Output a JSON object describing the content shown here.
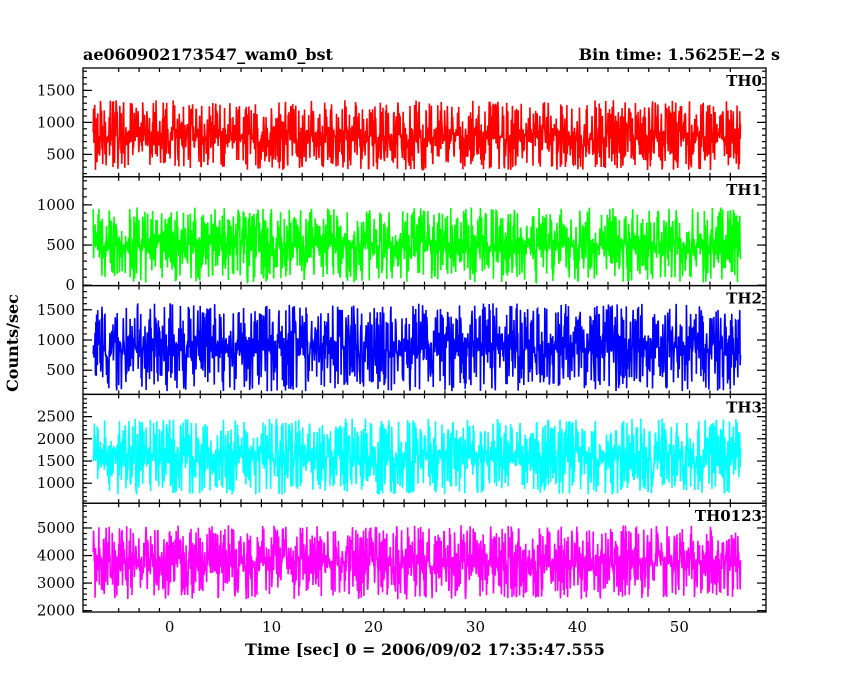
{
  "header": {
    "title": "ae060902173547_wam0_bst",
    "bin_time": "Bin time: 1.5625E−2 s"
  },
  "chart_data": {
    "type": "line",
    "ylabel": "Counts/sec",
    "xlabel": "Time [sec] 0 = 2006/09/02 17:35:47.555",
    "xlim": [
      -8.5,
      58.5
    ],
    "data_xrange": [
      -7.5,
      56.0
    ],
    "x_ticks": [
      0,
      10,
      20,
      30,
      40,
      50
    ],
    "x_tick_labels": [
      "0",
      "10",
      "20",
      "30",
      "40",
      "50"
    ],
    "panels": [
      {
        "name": "TH0",
        "color": "#ff0000",
        "ylim": [
          150,
          1850
        ],
        "yticks": [
          500,
          1000,
          1500
        ],
        "typical_range": [
          350,
          1300
        ],
        "mean": 800,
        "spread": 210
      },
      {
        "name": "TH1",
        "color": "#00ff00",
        "ylim": [
          -5,
          1350
        ],
        "yticks": [
          0,
          500,
          1000
        ],
        "typical_range": [
          100,
          950
        ],
        "mean": 500,
        "spread": 180
      },
      {
        "name": "TH2",
        "color": "#0000ff",
        "ylim": [
          100,
          1900
        ],
        "yticks": [
          500,
          1000,
          1500
        ],
        "typical_range": [
          250,
          1550
        ],
        "mean": 880,
        "spread": 280
      },
      {
        "name": "TH3",
        "color": "#00ffff",
        "ylim": [
          550,
          3000
        ],
        "yticks": [
          1000,
          1500,
          2000,
          2500
        ],
        "typical_range": [
          900,
          2400
        ],
        "mean": 1600,
        "spread": 330
      },
      {
        "name": "TH0123",
        "color": "#ff00ff",
        "ylim": [
          1950,
          5900
        ],
        "yticks": [
          2000,
          3000,
          4000,
          5000
        ],
        "typical_range": [
          2600,
          4900
        ],
        "mean": 3750,
        "spread": 520
      }
    ]
  }
}
